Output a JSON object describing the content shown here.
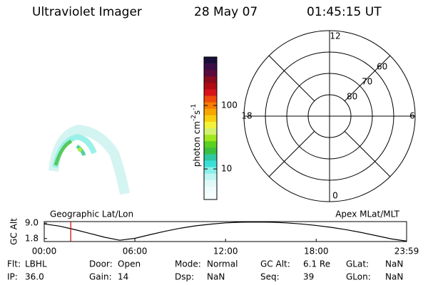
{
  "header": {
    "title": "Ultraviolet Imager",
    "date": "28 May 07",
    "time": "01:45:15 UT"
  },
  "colorbar": {
    "label_parts": [
      "photon cm",
      "-2",
      "s",
      "-1"
    ],
    "log_scale": true,
    "lim": [
      3.3,
      580
    ],
    "ticks": [
      10,
      100
    ],
    "colors": [
      "#1a0f3a",
      "#3c0c46",
      "#5a0a3c",
      "#8a0a1e",
      "#b00a12",
      "#d8141a",
      "#f04a0c",
      "#f57c00",
      "#f7a500",
      "#f8cf10",
      "#f2f23a",
      "#d2f26e",
      "#a0e81e",
      "#5ad020",
      "#3cc040",
      "#30c8a0",
      "#3ae0d8",
      "#8aefea",
      "#bff5f2",
      "#dffaf8",
      "#eefcfb",
      "#f6fefd"
    ]
  },
  "polar": {
    "rlim": [
      50,
      90
    ],
    "rticks": [
      60,
      70,
      80
    ],
    "hour_ticks": [
      12,
      18,
      6,
      0
    ]
  },
  "chart_data": [
    {
      "type": "line",
      "y_label": "GC Alt",
      "left_label": "Geographic Lat/Lon",
      "right_label": "Apex MLat/MLT",
      "x": [
        0,
        1,
        2,
        3,
        4,
        5,
        6,
        7,
        8,
        9,
        10,
        11,
        12,
        13,
        14,
        15,
        16,
        17,
        18,
        19,
        20,
        21,
        22,
        23,
        23.983
      ],
      "values": [
        8.6,
        7.6,
        6.0,
        4.2,
        2.4,
        1.0,
        1.9,
        3.6,
        5.2,
        6.6,
        7.7,
        8.5,
        9.1,
        9.4,
        9.5,
        9.4,
        9.1,
        8.6,
        7.9,
        7.0,
        5.9,
        4.6,
        3.1,
        1.6,
        0.6
      ],
      "color": "#000000",
      "current_time": 1.754,
      "current_color": "#cc0000",
      "xlim": [
        0,
        23.983
      ],
      "ylim": [
        0.4,
        9.7
      ],
      "xticks": [
        {
          "value": 0,
          "label": "00:00"
        },
        {
          "value": 6,
          "label": "06:00"
        },
        {
          "value": 12,
          "label": "12:00"
        },
        {
          "value": 18,
          "label": "18:00"
        },
        {
          "value": 23.983,
          "label": "23:59"
        }
      ],
      "yticks": [
        1.8,
        {
          "value": 9,
          "label": "9.0"
        }
      ]
    }
  ],
  "info": {
    "rows": [
      [
        [
          "Flt:",
          "LBHL"
        ],
        [
          "Door:",
          "Open"
        ],
        [
          "Mode:",
          "Normal"
        ],
        [
          "GC Alt:",
          "6.1 Re"
        ],
        [
          "GLat:",
          "NaN"
        ]
      ],
      [
        [
          "IP:",
          "36.0"
        ],
        [
          "Gain:",
          "14"
        ],
        [
          "Dsp:",
          "NaN"
        ],
        [
          "Seq:",
          "39"
        ],
        [
          "GLon:",
          "NaN"
        ]
      ]
    ]
  }
}
